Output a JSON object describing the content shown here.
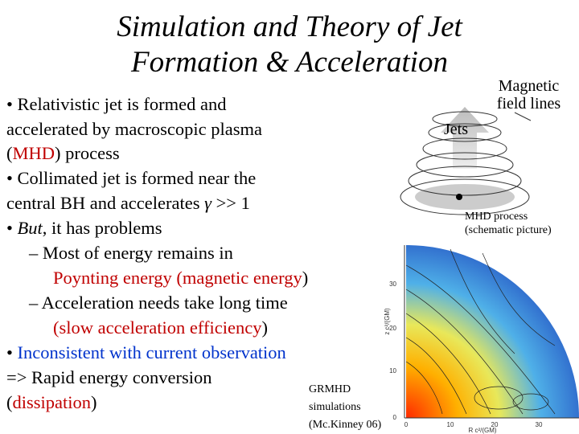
{
  "title": [
    "Simulation and Theory of Jet",
    "Formation & Acceleration"
  ],
  "body": [
    [
      "• Relativistic jet is formed and"
    ],
    [
      "accelerated by macroscopic plasma"
    ],
    [
      "(",
      "MHD",
      ") process"
    ],
    [
      "• Collimated jet is formed near the"
    ],
    [
      "central BH and accelerates ",
      "γ",
      " >> 1"
    ],
    [
      "• ",
      "But",
      ", it has problems"
    ],
    [
      "– Most of energy remains in"
    ],
    [
      "Poynting energy (",
      "magnetic energy",
      ")"
    ],
    [
      "– Acceleration needs take long time"
    ],
    [
      "(slow acceleration efficiency",
      ")"
    ],
    [
      "• ",
      "Inconsistent with current observation"
    ],
    [
      "=> Rapid energy conversion"
    ],
    [
      "(",
      "dissipation",
      ")"
    ]
  ],
  "schematic": {
    "field_label": [
      "Magnetic",
      "field lines"
    ],
    "jets_label": "Jets",
    "caption": [
      "MHD process",
      "(schematic picture)"
    ]
  },
  "simulation": {
    "caption": [
      "GRMHD",
      "simulations",
      "(Mc.Kinney 06)"
    ],
    "y_axis_label": "z c²/(GM)",
    "x_axis_label": "R c²/(GM)",
    "yticks": [
      "30",
      "20",
      "10",
      "0"
    ],
    "xticks": [
      "0",
      "10",
      "20",
      "30"
    ]
  }
}
